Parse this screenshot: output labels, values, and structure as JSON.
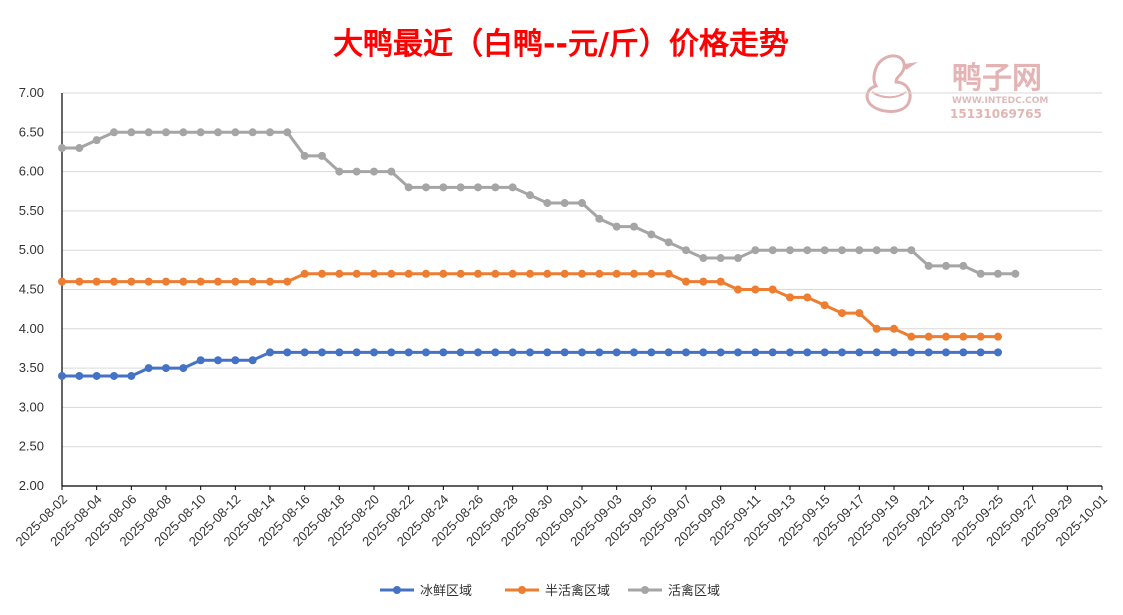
{
  "watermark": {
    "brand": "鸭子网",
    "site": "WWW.INTEDC.COM",
    "phone": "15131069765",
    "icon": "duck-logo-icon",
    "color": "#e8b0b0"
  },
  "chart_data": {
    "type": "line",
    "title": "大鸭最近（白鸭--元/斤）价格走势",
    "title_color": "#ff0000",
    "ylim": [
      2.0,
      7.0
    ],
    "yticks": [
      "2.00",
      "2.50",
      "3.00",
      "3.50",
      "4.00",
      "4.50",
      "5.00",
      "5.50",
      "6.00",
      "6.50",
      "7.00"
    ],
    "x_start": "2025-08-02",
    "x_end": "2025-10-01",
    "xticks": [
      "2025-08-02",
      "2025-08-04",
      "2025-08-06",
      "2025-08-08",
      "2025-08-10",
      "2025-08-12",
      "2025-08-14",
      "2025-08-16",
      "2025-08-18",
      "2025-08-20",
      "2025-08-22",
      "2025-08-24",
      "2025-08-26",
      "2025-08-28",
      "2025-08-30",
      "2025-09-01",
      "2025-09-03",
      "2025-09-05",
      "2025-09-07",
      "2025-09-09",
      "2025-09-11",
      "2025-09-13",
      "2025-09-15",
      "2025-09-17",
      "2025-09-19",
      "2025-09-21",
      "2025-09-23",
      "2025-09-25",
      "2025-09-27",
      "2025-09-29",
      "2025-10-01"
    ],
    "grid": true,
    "legend_position": "bottom",
    "series": [
      {
        "name": "冰鲜区域",
        "color": "#4472c4",
        "start": "2025-08-02",
        "values": [
          3.4,
          3.4,
          3.4,
          3.4,
          3.4,
          3.5,
          3.5,
          3.5,
          3.6,
          3.6,
          3.6,
          3.6,
          3.7,
          3.7,
          3.7,
          3.7,
          3.7,
          3.7,
          3.7,
          3.7,
          3.7,
          3.7,
          3.7,
          3.7,
          3.7,
          3.7,
          3.7,
          3.7,
          3.7,
          3.7,
          3.7,
          3.7,
          3.7,
          3.7,
          3.7,
          3.7,
          3.7,
          3.7,
          3.7,
          3.7,
          3.7,
          3.7,
          3.7,
          3.7,
          3.7,
          3.7,
          3.7,
          3.7,
          3.7,
          3.7,
          3.7,
          3.7,
          3.7,
          3.7,
          3.7
        ]
      },
      {
        "name": "半活禽区域",
        "color": "#ed7d31",
        "start": "2025-08-02",
        "values": [
          4.6,
          4.6,
          4.6,
          4.6,
          4.6,
          4.6,
          4.6,
          4.6,
          4.6,
          4.6,
          4.6,
          4.6,
          4.6,
          4.6,
          4.7,
          4.7,
          4.7,
          4.7,
          4.7,
          4.7,
          4.7,
          4.7,
          4.7,
          4.7,
          4.7,
          4.7,
          4.7,
          4.7,
          4.7,
          4.7,
          4.7,
          4.7,
          4.7,
          4.7,
          4.7,
          4.7,
          4.6,
          4.6,
          4.6,
          4.5,
          4.5,
          4.5,
          4.4,
          4.4,
          4.3,
          4.2,
          4.2,
          4.0,
          4.0,
          3.9,
          3.9,
          3.9,
          3.9,
          3.9,
          3.9
        ]
      },
      {
        "name": "活禽区域",
        "color": "#a5a5a5",
        "start": "2025-08-02",
        "values": [
          6.3,
          6.3,
          6.4,
          6.5,
          6.5,
          6.5,
          6.5,
          6.5,
          6.5,
          6.5,
          6.5,
          6.5,
          6.5,
          6.5,
          6.2,
          6.2,
          6.0,
          6.0,
          6.0,
          6.0,
          5.8,
          5.8,
          5.8,
          5.8,
          5.8,
          5.8,
          5.8,
          5.7,
          5.6,
          5.6,
          5.6,
          5.4,
          5.3,
          5.3,
          5.2,
          5.1,
          5.0,
          4.9,
          4.9,
          4.9,
          5.0,
          5.0,
          5.0,
          5.0,
          5.0,
          5.0,
          5.0,
          5.0,
          5.0,
          5.0,
          4.8,
          4.8,
          4.8,
          4.7,
          4.7,
          4.7
        ]
      }
    ]
  }
}
